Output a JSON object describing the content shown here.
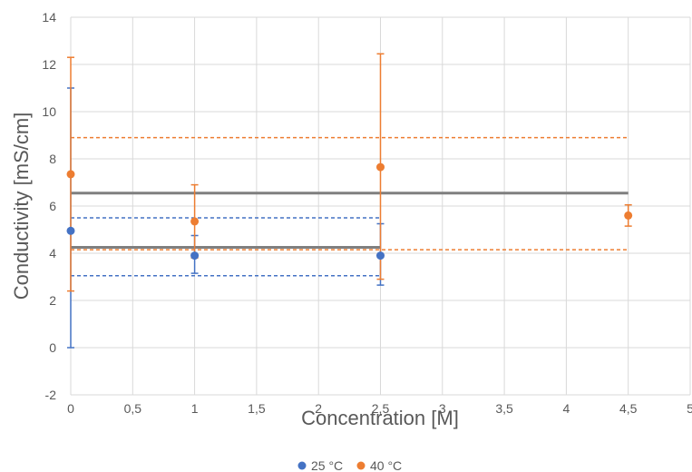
{
  "chart_data": {
    "type": "scatter",
    "title": "",
    "xlabel": "Concentration [M]",
    "ylabel": "Conductivity [mS/cm]",
    "xlim": [
      0,
      5
    ],
    "ylim": [
      -2,
      14
    ],
    "x_ticks": [
      "0",
      "0,5",
      "1",
      "1,5",
      "2",
      "2,5",
      "3",
      "3,5",
      "4",
      "4,5",
      "5"
    ],
    "y_ticks": [
      "-2",
      "0",
      "2",
      "4",
      "6",
      "8",
      "10",
      "12",
      "14"
    ],
    "grid": true,
    "legend_position": "bottom",
    "series": [
      {
        "name": "25 °C",
        "color": "#4472c4",
        "points": [
          {
            "x": 0,
            "y": 4.95,
            "err_low": 4.95,
            "err_high": 6.05
          },
          {
            "x": 1,
            "y": 3.9,
            "err_low": 0.75,
            "err_high": 0.85
          },
          {
            "x": 2.5,
            "y": 3.9,
            "err_low": 1.25,
            "err_high": 1.35
          }
        ]
      },
      {
        "name": "40 °C",
        "color": "#ed7d31",
        "points": [
          {
            "x": 0,
            "y": 7.35,
            "err_low": 4.95,
            "err_high": 4.95
          },
          {
            "x": 1,
            "y": 5.35,
            "err_low": 1.55,
            "err_high": 1.55
          },
          {
            "x": 2.5,
            "y": 7.65,
            "err_low": 4.75,
            "err_high": 4.8
          },
          {
            "x": 4.5,
            "y": 5.6,
            "err_low": 0.45,
            "err_high": 0.45
          }
        ]
      }
    ],
    "reference_lines": [
      {
        "style": "solid",
        "color": "#7f7f7f",
        "y": 6.55,
        "x_range": [
          0,
          4.5
        ]
      },
      {
        "style": "solid",
        "color": "#7f7f7f",
        "y": 4.25,
        "x_range": [
          0,
          2.5
        ]
      },
      {
        "style": "dashed",
        "color": "#4472c4",
        "y": 5.5,
        "x_range": [
          0,
          2.5
        ]
      },
      {
        "style": "dashed",
        "color": "#4472c4",
        "y": 3.05,
        "x_range": [
          0,
          2.5
        ]
      },
      {
        "style": "dashed",
        "color": "#ed7d31",
        "y": 8.9,
        "x_range": [
          0,
          4.5
        ]
      },
      {
        "style": "dashed",
        "color": "#ed7d31",
        "y": 4.15,
        "x_range": [
          0,
          4.5
        ]
      }
    ]
  }
}
